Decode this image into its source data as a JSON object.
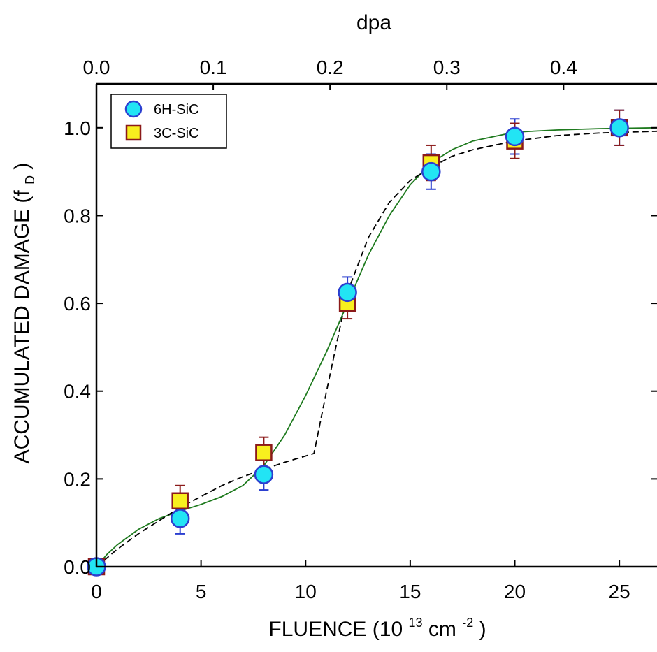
{
  "chart_data": {
    "type": "scatter",
    "title": "",
    "xlabel": "FLUENCE",
    "xlabel_unit_prefix": "(10",
    "xlabel_unit_exp1": "13",
    "xlabel_unit_mid": " cm",
    "xlabel_unit_exp2": "-2",
    "xlabel_unit_suffix": ")",
    "ylabel": "ACCUMULATED  DAMAGE  (f",
    "ylabel_sub": "D",
    "ylabel_close": ")",
    "x2label": "dpa",
    "xlim": [
      0,
      26.8
    ],
    "ylim": [
      0,
      1.1
    ],
    "x2lim": [
      0,
      0.48
    ],
    "xticks": [
      0,
      5,
      10,
      15,
      20,
      25
    ],
    "xticklabels": [
      "0",
      "5",
      "10",
      "15",
      "20",
      "25"
    ],
    "yticks": [
      0.0,
      0.2,
      0.4,
      0.6,
      0.8,
      1.0
    ],
    "yticklabels": [
      "0.0",
      "0.2",
      "0.4",
      "0.6",
      "0.8",
      "1.0"
    ],
    "x2ticks": [
      0.0,
      0.1,
      0.2,
      0.3,
      0.4
    ],
    "x2ticklabels": [
      "0.0",
      "0.1",
      "0.2",
      "0.3",
      "0.4"
    ],
    "grid": false,
    "legend_position": "top-left",
    "series": [
      {
        "name": "6H-SiC",
        "marker": "circle",
        "fill": "#22e4f4",
        "stroke": "#2b3fd0",
        "x": [
          0,
          4,
          8,
          12,
          16,
          20,
          25
        ],
        "y": [
          0.0,
          0.11,
          0.21,
          0.625,
          0.9,
          0.98,
          1.0
        ],
        "yerr": [
          0.0,
          0.035,
          0.035,
          0.035,
          0.04,
          0.04,
          0.04
        ]
      },
      {
        "name": "3C-SiC",
        "marker": "square",
        "fill": "#f8ef1e",
        "stroke": "#8b1a1a",
        "x": [
          0,
          4,
          8,
          12,
          16,
          20,
          25
        ],
        "y": [
          0.0,
          0.15,
          0.26,
          0.6,
          0.92,
          0.97,
          1.0
        ],
        "yerr": [
          0.0,
          0.035,
          0.035,
          0.035,
          0.04,
          0.04,
          0.04
        ]
      }
    ],
    "curves": [
      {
        "style": "solid",
        "color": "#1e7a1e",
        "x": [
          0,
          0.5,
          1,
          2,
          3,
          4,
          5,
          6,
          7,
          8,
          9,
          10,
          11,
          12,
          13,
          14,
          15,
          16,
          17,
          18,
          19,
          20,
          22,
          24,
          26.8
        ],
        "y": [
          0.0,
          0.028,
          0.05,
          0.085,
          0.11,
          0.127,
          0.142,
          0.16,
          0.185,
          0.23,
          0.3,
          0.39,
          0.49,
          0.6,
          0.71,
          0.8,
          0.87,
          0.92,
          0.95,
          0.97,
          0.98,
          0.99,
          0.995,
          0.998,
          1.0
        ]
      },
      {
        "style": "dashed",
        "color": "#000000",
        "x": [
          0,
          0.5,
          1,
          2,
          3,
          4,
          5,
          6,
          7,
          8,
          9,
          10.4,
          11,
          12,
          13,
          14,
          15,
          16,
          17,
          18,
          20,
          22,
          24,
          26.8
        ],
        "y": [
          0.0,
          0.02,
          0.04,
          0.075,
          0.105,
          0.135,
          0.16,
          0.185,
          0.205,
          0.222,
          0.238,
          0.258,
          0.4,
          0.625,
          0.75,
          0.83,
          0.88,
          0.91,
          0.935,
          0.95,
          0.97,
          0.982,
          0.988,
          0.992
        ]
      }
    ]
  }
}
